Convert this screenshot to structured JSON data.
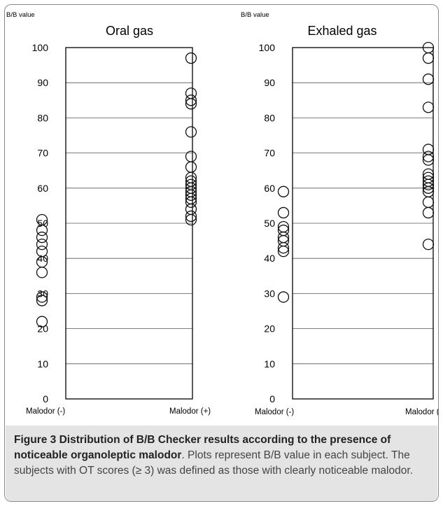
{
  "chart_data": [
    {
      "type": "scatter",
      "title": "Oral gas",
      "ylabel": "B/B value",
      "ylim": [
        0,
        100
      ],
      "yticks": [
        0,
        10,
        20,
        30,
        40,
        50,
        60,
        70,
        80,
        90,
        100
      ],
      "categories": [
        "Malodor (-)",
        "Malodor (+)"
      ],
      "series": [
        {
          "category": "Malodor (-)",
          "values": [
            22,
            28,
            29,
            36,
            39,
            42,
            44,
            46,
            48,
            51
          ]
        },
        {
          "category": "Malodor (+)",
          "values": [
            51,
            52,
            54,
            56,
            57,
            58,
            59,
            60,
            61,
            62,
            63,
            66,
            69,
            76,
            84,
            85,
            87,
            97
          ]
        }
      ],
      "grid": true
    },
    {
      "type": "scatter",
      "title": "Exhaled gas",
      "ylabel": "B/B value",
      "ylim": [
        0,
        100
      ],
      "yticks": [
        0,
        10,
        20,
        30,
        40,
        50,
        60,
        70,
        80,
        90,
        100
      ],
      "categories": [
        "Malodor (-)",
        "Malodor (+)"
      ],
      "series": [
        {
          "category": "Malodor (-)",
          "values": [
            29,
            42,
            43,
            45,
            46,
            48,
            49,
            53,
            59
          ]
        },
        {
          "category": "Malodor (+)",
          "values": [
            44,
            53,
            56,
            59,
            60,
            61,
            62,
            63,
            64,
            68,
            69,
            71,
            83,
            91,
            97,
            100
          ]
        }
      ],
      "grid": true
    }
  ],
  "caption": {
    "title": "Figure 3 Distribution of B/B Checker results according to the presence of noticeable organoleptic malodor",
    "body": ". Plots represent B/B value in each subject. The subjects with OT scores (≥ 3) was defined as those with clearly noticeable malodor."
  },
  "colors": {
    "marker": "#111111",
    "axis": "#000000",
    "grid": "#555555",
    "caption_bg": "#e4e4e4"
  }
}
